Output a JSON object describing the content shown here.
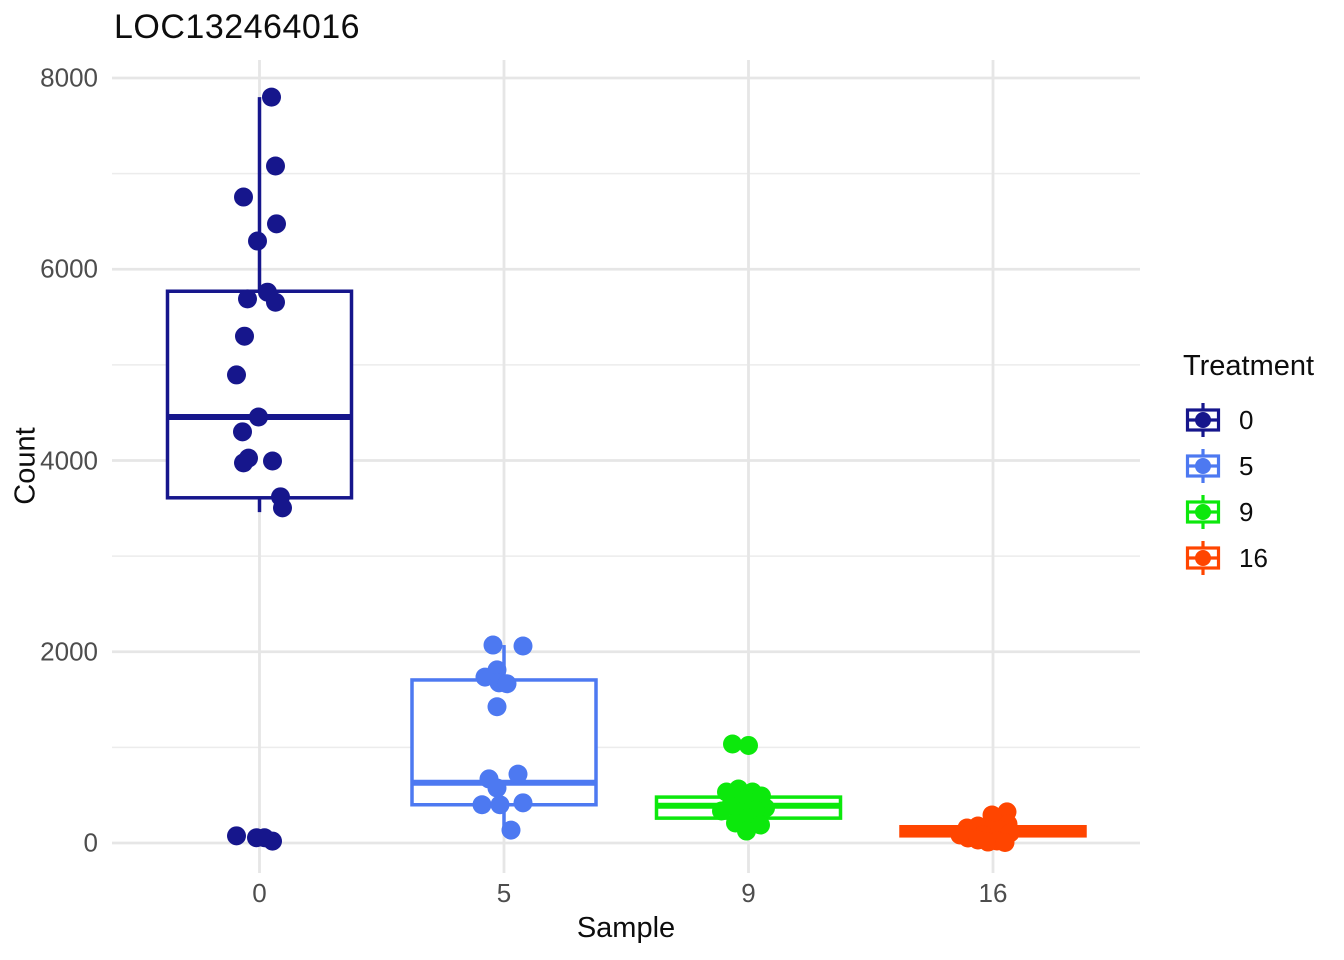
{
  "title": "LOC132464016",
  "axes": {
    "x_label": "Sample",
    "y_label": "Count",
    "x_tick_labels": [
      "0",
      "5",
      "9",
      "16"
    ],
    "y_tick_labels": [
      "0",
      "2000",
      "4000",
      "6000",
      "8000"
    ],
    "y_tick_values": [
      0,
      2000,
      4000,
      6000,
      8000
    ],
    "y_minor_values": [
      1000,
      3000,
      5000,
      7000
    ],
    "y_range": [
      0,
      8000
    ]
  },
  "legend": {
    "title": "Treatment",
    "entries": [
      {
        "label": "0",
        "color": "#16168C"
      },
      {
        "label": "5",
        "color": "#4D79F1"
      },
      {
        "label": "9",
        "color": "#0CE80C"
      },
      {
        "label": "16",
        "color": "#FF4500"
      }
    ]
  },
  "colors": {
    "grid_major": "#E6E6E6",
    "grid_minor": "#ECECEC",
    "tick_text": "#4d4d4d",
    "text": "#0d0d0d",
    "panel_background": "#ffffff"
  },
  "chart_data": {
    "type": "boxplot_with_jitter",
    "title": "LOC132464016",
    "xlabel": "Sample",
    "ylabel": "Count",
    "ylim": [
      0,
      8000
    ],
    "grid": true,
    "legend_position": "right",
    "legend_title": "Treatment",
    "categories": [
      "0",
      "5",
      "9",
      "16"
    ],
    "groups": [
      {
        "treatment": "0",
        "color": "#16168C",
        "box": {
          "q1": 3610,
          "median": 4455,
          "q3": 5770,
          "whisker_low": 3460,
          "whisker_high": 7800
        },
        "points": [
          [
            7800,
            12
          ],
          [
            7080,
            16
          ],
          [
            6755,
            -16
          ],
          [
            6475,
            17
          ],
          [
            6295,
            -2
          ],
          [
            5760,
            8
          ],
          [
            5690,
            -12
          ],
          [
            5655,
            16
          ],
          [
            5300,
            -15
          ],
          [
            4895,
            -23
          ],
          [
            4455,
            -1
          ],
          [
            4300,
            -17
          ],
          [
            4025,
            -11
          ],
          [
            3995,
            13
          ],
          [
            3975,
            -16
          ],
          [
            3620,
            21
          ],
          [
            3505,
            23
          ],
          [
            75,
            -23
          ],
          [
            55,
            -3
          ],
          [
            55,
            5
          ],
          [
            20,
            13
          ]
        ]
      },
      {
        "treatment": "5",
        "color": "#4D79F1",
        "box": {
          "q1": 400,
          "median": 630,
          "q3": 1705,
          "whisker_low": 135,
          "whisker_high": 2070
        },
        "points": [
          [
            2070,
            -11
          ],
          [
            2060,
            19
          ],
          [
            1810,
            -7
          ],
          [
            1735,
            -19
          ],
          [
            1675,
            -5
          ],
          [
            1665,
            3
          ],
          [
            1425,
            -7
          ],
          [
            720,
            14
          ],
          [
            670,
            -15
          ],
          [
            575,
            -7
          ],
          [
            420,
            19
          ],
          [
            400,
            -22
          ],
          [
            400,
            -4
          ],
          [
            135,
            7
          ]
        ]
      },
      {
        "treatment": "9",
        "color": "#0CE80C",
        "box": {
          "q1": 260,
          "median": 390,
          "q3": 480,
          "whisker_low": 125,
          "whisker_high": 570
        },
        "points": [
          [
            1035,
            -16
          ],
          [
            1020,
            0
          ],
          [
            565,
            -10
          ],
          [
            533,
            -22
          ],
          [
            533,
            4
          ],
          [
            491,
            13
          ],
          [
            450,
            -4
          ],
          [
            387,
            -18
          ],
          [
            366,
            17
          ],
          [
            345,
            7
          ],
          [
            335,
            -27
          ],
          [
            324,
            -8
          ],
          [
            261,
            -1
          ],
          [
            209,
            -13
          ],
          [
            188,
            12
          ],
          [
            125,
            -2
          ]
        ]
      },
      {
        "treatment": "16",
        "color": "#FF4500",
        "box": {
          "q1": 75,
          "median": 120,
          "q3": 170,
          "whisker_low": 5,
          "whisker_high": 295
        },
        "points": [
          [
            325,
            14
          ],
          [
            293,
            -1
          ],
          [
            199,
            15
          ],
          [
            178,
            -15
          ],
          [
            157,
            -26
          ],
          [
            136,
            -3
          ],
          [
            136,
            7
          ],
          [
            105,
            17
          ],
          [
            84,
            -33
          ],
          [
            84,
            -10
          ],
          [
            52,
            -25
          ],
          [
            31,
            -15
          ],
          [
            21,
            4
          ],
          [
            10,
            -5
          ],
          [
            5,
            12
          ]
        ]
      }
    ]
  }
}
